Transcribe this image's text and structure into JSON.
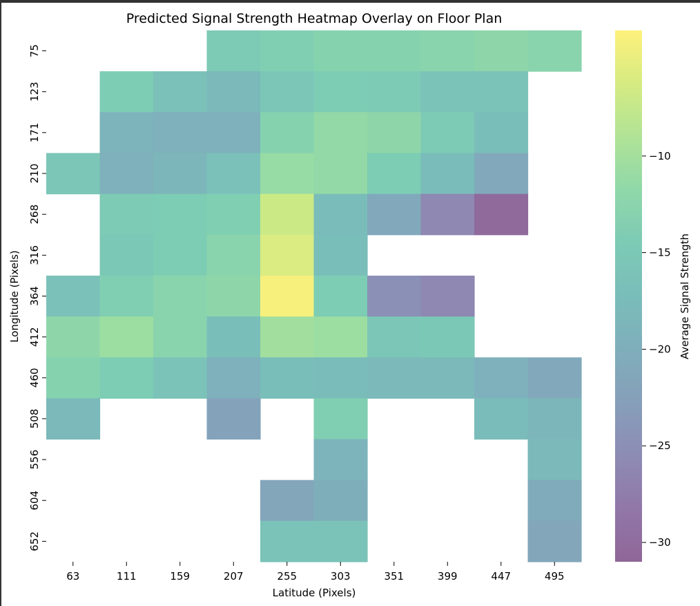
{
  "chart_data": {
    "type": "heatmap",
    "title": "Predicted Signal Strength Heatmap Overlay on Floor Plan",
    "xlabel": "Latitude (Pixels)",
    "ylabel": "Longitude (Pixels)",
    "x": [
      "63",
      "111",
      "159",
      "207",
      "255",
      "303",
      "351",
      "399",
      "447",
      "495"
    ],
    "y": [
      "75",
      "123",
      "171",
      "210",
      "268",
      "316",
      "364",
      "412",
      "460",
      "508",
      "556",
      "604",
      "652"
    ],
    "values": [
      [
        null,
        null,
        null,
        -14.5,
        -13.5,
        -13.0,
        -13.0,
        -12.5,
        -12.0,
        -12.5
      ],
      [
        null,
        -14.0,
        -16.5,
        -18.0,
        -15.5,
        -14.0,
        -14.5,
        -16.0,
        -16.0,
        null
      ],
      [
        null,
        -19.0,
        -19.5,
        -19.5,
        -13.0,
        -11.5,
        -12.0,
        -14.5,
        -17.0,
        null
      ],
      [
        -15.5,
        -19.5,
        -18.5,
        -16.5,
        -11.0,
        -11.5,
        -14.0,
        -17.5,
        -21.0,
        null
      ],
      [
        null,
        -14.5,
        -14.0,
        -13.5,
        -7.0,
        -17.5,
        -21.0,
        -26.0,
        -30.5,
        null
      ],
      [
        null,
        -15.0,
        -14.0,
        -12.5,
        -6.0,
        -17.0,
        null,
        null,
        null,
        null
      ],
      [
        -16.5,
        -13.5,
        -12.5,
        -12.0,
        -4.0,
        -14.0,
        -25.0,
        -26.0,
        null,
        null
      ],
      [
        -12.0,
        -10.5,
        -12.5,
        -17.0,
        -10.0,
        -10.5,
        -15.5,
        -15.0,
        null,
        null
      ],
      [
        -13.0,
        -14.0,
        -16.0,
        -19.5,
        -17.0,
        -17.5,
        -18.0,
        -18.0,
        -19.5,
        -21.0
      ],
      [
        -18.0,
        null,
        null,
        -22.0,
        null,
        -13.5,
        null,
        null,
        -17.5,
        -18.5
      ],
      [
        null,
        null,
        null,
        null,
        null,
        -19.0,
        null,
        null,
        null,
        -18.0
      ],
      [
        null,
        null,
        null,
        null,
        -21.5,
        -20.0,
        null,
        null,
        null,
        -20.5
      ],
      [
        null,
        null,
        null,
        null,
        -16.0,
        -16.0,
        null,
        null,
        null,
        -21.5
      ]
    ],
    "colorbar": {
      "label": "Average Signal Strength",
      "ticks": [
        "−10",
        "−15",
        "−20",
        "−25",
        "−30"
      ],
      "tick_values": [
        -10,
        -15,
        -20,
        -25,
        -30
      ],
      "range": [
        -31,
        -3.5
      ]
    },
    "colormap": "viridis",
    "alpha": 0.6
  }
}
